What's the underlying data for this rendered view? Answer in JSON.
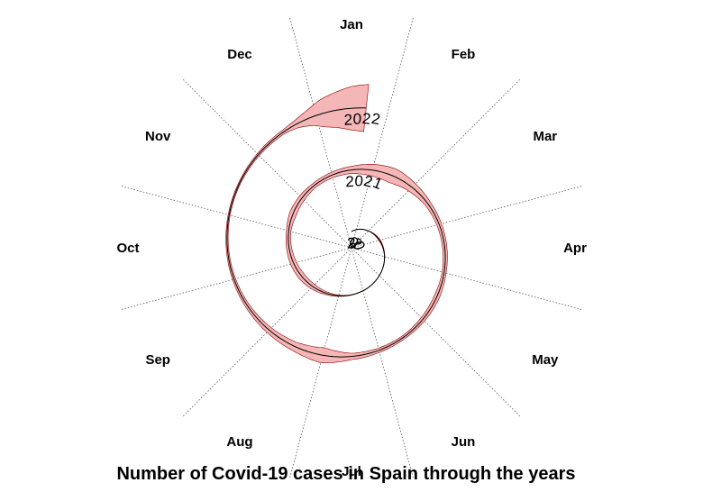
{
  "chart_data": {
    "type": "area",
    "title": "Number of Covid-19 cases in Spain through the years",
    "projection": "spiral",
    "months": [
      "Jan",
      "Feb",
      "Mar",
      "Apr",
      "May",
      "Jun",
      "Jul",
      "Aug",
      "Sep",
      "Oct",
      "Nov",
      "Dec"
    ],
    "year_labels": [
      "2020",
      "2021",
      "2022"
    ],
    "grid": true,
    "band_color": "#f4b6b6",
    "band_edge_color": "#8b0000",
    "line_color": "#000000",
    "series": [
      {
        "months_since_jan_2020": [
          0,
          0.5,
          1,
          1.5,
          2,
          2.5,
          3,
          3.5,
          4,
          4.5,
          5,
          5.5,
          6,
          6.5,
          7,
          7.5,
          8,
          8.5,
          9,
          9.5,
          10,
          10.5,
          11,
          11.5,
          12,
          12.5,
          13,
          13.5,
          14,
          14.5,
          15,
          15.5,
          16,
          16.5,
          17,
          17.5,
          18,
          18.5,
          19,
          19.5,
          20,
          20.5,
          21,
          21.5,
          22,
          22.5,
          23,
          23.2,
          23.4,
          23.6,
          23.8,
          24,
          24.2
        ],
        "relative_cases": [
          0,
          0,
          0,
          0.1,
          0.5,
          0.8,
          0.4,
          0.2,
          0.1,
          0.1,
          0.1,
          0.1,
          0.2,
          0.6,
          1.6,
          2.8,
          3.4,
          3.2,
          2.6,
          2.2,
          3.6,
          3.2,
          2.4,
          2.8,
          3.6,
          6,
          7.8,
          5,
          3,
          2.4,
          2.2,
          2,
          2.8,
          2.4,
          1.8,
          2.2,
          3.2,
          7.8,
          4.6,
          3.2,
          2.2,
          1.6,
          1.2,
          1,
          1,
          1.4,
          2,
          4,
          8,
          14,
          18,
          22,
          24
        ]
      }
    ]
  }
}
